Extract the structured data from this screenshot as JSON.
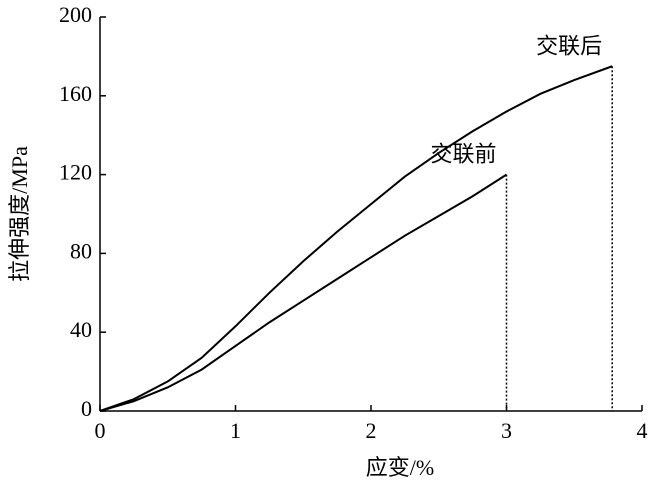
{
  "chart_data": {
    "type": "line",
    "x_label": "应变/%",
    "y_label": "拉伸强度/MPa",
    "series": [
      {
        "name": "交联后",
        "color": "#000000",
        "x": [
          0,
          0.25,
          0.5,
          0.75,
          1,
          1.25,
          1.5,
          1.75,
          2,
          2.25,
          2.5,
          2.75,
          3,
          3.25,
          3.5,
          3.78
        ],
        "values": [
          0,
          6,
          15,
          27,
          43,
          60,
          76,
          91,
          105,
          119,
          131,
          142,
          152,
          161,
          168,
          175
        ]
      },
      {
        "name": "交联前",
        "color": "#000000",
        "x": [
          0,
          0.25,
          0.5,
          0.75,
          1,
          1.25,
          1.5,
          1.75,
          2,
          2.25,
          2.5,
          2.75,
          3
        ],
        "values": [
          0,
          5,
          12,
          21,
          33,
          45,
          56,
          67,
          78,
          89,
          99,
          109,
          120
        ]
      }
    ],
    "xlim": [
      0,
      4
    ],
    "xticks": [
      0,
      1,
      2,
      3,
      4
    ],
    "ylim": [
      0,
      200
    ],
    "yticks": [
      0,
      40,
      80,
      120,
      160,
      200
    ],
    "grid": false,
    "drop_lines": true
  }
}
